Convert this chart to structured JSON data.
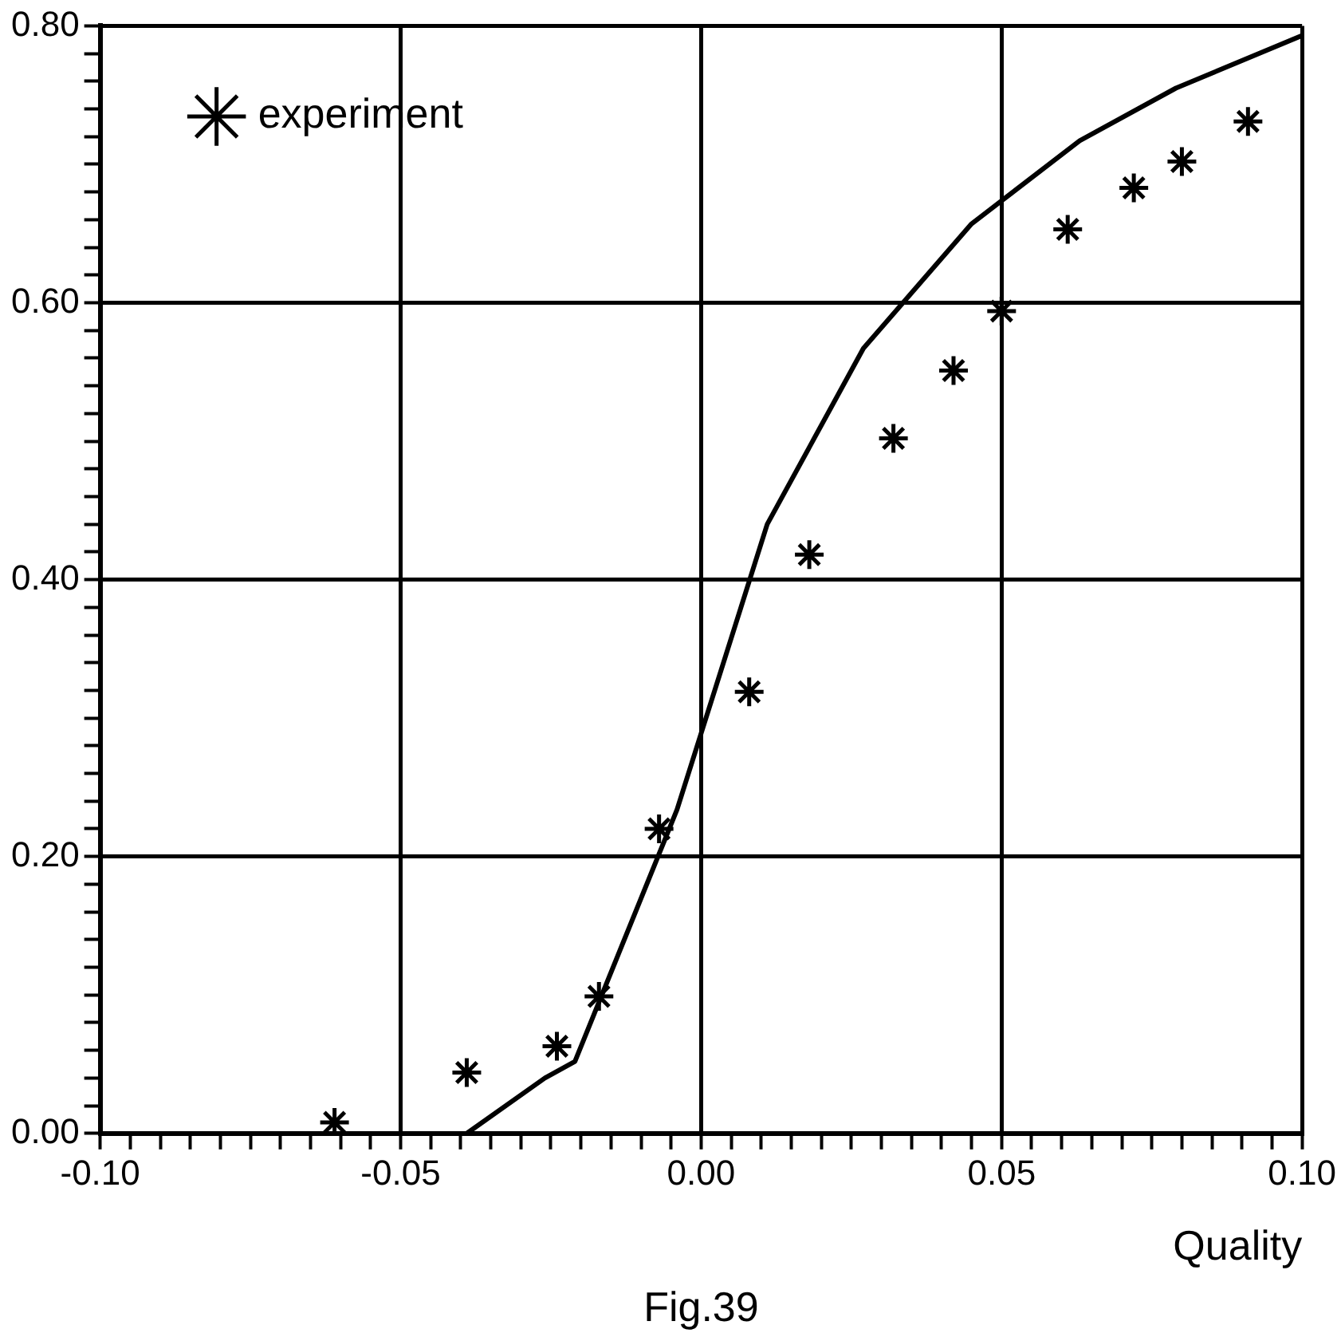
{
  "chart_data": {
    "type": "scatter",
    "xlabel": "Quality",
    "annotations": [
      "Fig.39"
    ],
    "xlim": [
      -0.1,
      0.1
    ],
    "ylim": [
      0,
      0.8
    ],
    "xticks": [
      {
        "value": -0.1,
        "label": "-0.10"
      },
      {
        "value": -0.095,
        "label": null
      },
      {
        "value": -0.09,
        "label": null
      },
      {
        "value": -0.085,
        "label": null
      },
      {
        "value": -0.08,
        "label": null
      },
      {
        "value": -0.075,
        "label": null
      },
      {
        "value": -0.07,
        "label": null
      },
      {
        "value": -0.065,
        "label": null
      },
      {
        "value": -0.06,
        "label": null
      },
      {
        "value": -0.055,
        "label": null
      },
      {
        "value": -0.05,
        "label": "-0.05"
      },
      {
        "value": -0.045,
        "label": null
      },
      {
        "value": -0.04,
        "label": null
      },
      {
        "value": -0.035,
        "label": null
      },
      {
        "value": -0.03,
        "label": null
      },
      {
        "value": -0.025,
        "label": null
      },
      {
        "value": -0.02,
        "label": null
      },
      {
        "value": -0.015,
        "label": null
      },
      {
        "value": -0.01,
        "label": null
      },
      {
        "value": -0.005,
        "label": null
      },
      {
        "value": 0,
        "label": "0.00"
      },
      {
        "value": 0.005,
        "label": null
      },
      {
        "value": 0.01,
        "label": null
      },
      {
        "value": 0.015,
        "label": null
      },
      {
        "value": 0.02,
        "label": null
      },
      {
        "value": 0.025,
        "label": null
      },
      {
        "value": 0.03,
        "label": null
      },
      {
        "value": 0.035,
        "label": null
      },
      {
        "value": 0.04,
        "label": null
      },
      {
        "value": 0.045,
        "label": null
      },
      {
        "value": 0.05,
        "label": "0.05"
      },
      {
        "value": 0.055,
        "label": null
      },
      {
        "value": 0.06,
        "label": null
      },
      {
        "value": 0.065,
        "label": null
      },
      {
        "value": 0.07,
        "label": null
      },
      {
        "value": 0.075,
        "label": null
      },
      {
        "value": 0.08,
        "label": null
      },
      {
        "value": 0.085,
        "label": null
      },
      {
        "value": 0.09,
        "label": null
      },
      {
        "value": 0.095,
        "label": null
      },
      {
        "value": 0.1,
        "label": "0.10"
      }
    ],
    "yticks": [
      {
        "value": 0,
        "label": "0.00"
      },
      {
        "value": 0.02,
        "label": null
      },
      {
        "value": 0.04,
        "label": null
      },
      {
        "value": 0.06,
        "label": null
      },
      {
        "value": 0.08,
        "label": null
      },
      {
        "value": 0.1,
        "label": null
      },
      {
        "value": 0.12,
        "label": null
      },
      {
        "value": 0.14,
        "label": null
      },
      {
        "value": 0.16,
        "label": null
      },
      {
        "value": 0.18,
        "label": null
      },
      {
        "value": 0.2,
        "label": "0.20"
      },
      {
        "value": 0.22,
        "label": null
      },
      {
        "value": 0.24,
        "label": null
      },
      {
        "value": 0.26,
        "label": null
      },
      {
        "value": 0.28,
        "label": null
      },
      {
        "value": 0.3,
        "label": null
      },
      {
        "value": 0.32,
        "label": null
      },
      {
        "value": 0.34,
        "label": null
      },
      {
        "value": 0.36,
        "label": null
      },
      {
        "value": 0.38,
        "label": null
      },
      {
        "value": 0.4,
        "label": "0.40"
      },
      {
        "value": 0.42,
        "label": null
      },
      {
        "value": 0.44,
        "label": null
      },
      {
        "value": 0.46,
        "label": null
      },
      {
        "value": 0.48,
        "label": null
      },
      {
        "value": 0.5,
        "label": null
      },
      {
        "value": 0.52,
        "label": null
      },
      {
        "value": 0.54,
        "label": null
      },
      {
        "value": 0.56,
        "label": null
      },
      {
        "value": 0.58,
        "label": null
      },
      {
        "value": 0.6,
        "label": "0.60"
      },
      {
        "value": 0.62,
        "label": null
      },
      {
        "value": 0.64,
        "label": null
      },
      {
        "value": 0.66,
        "label": null
      },
      {
        "value": 0.68,
        "label": null
      },
      {
        "value": 0.7,
        "label": null
      },
      {
        "value": 0.72,
        "label": null
      },
      {
        "value": 0.74,
        "label": null
      },
      {
        "value": 0.76,
        "label": null
      },
      {
        "value": 0.78,
        "label": null
      },
      {
        "value": 0.8,
        "label": "0.80"
      }
    ],
    "grid": true,
    "legend": "top left",
    "series": [
      {
        "name": "experiment",
        "marker": "cross",
        "color": "#000000",
        "x": [
          -0.061,
          -0.039,
          -0.024,
          -0.017,
          -0.007,
          0.008,
          0.018,
          0.032,
          0.042,
          0.05,
          0.061,
          0.072,
          0.08,
          0.091
        ],
        "values": [
          0.008,
          0.044,
          0.063,
          0.099,
          0.22,
          0.319,
          0.418,
          0.502,
          0.551,
          0.594,
          0.653,
          0.683,
          0.702,
          0.731
        ]
      },
      {
        "type": "line",
        "marker": "none",
        "line_style": "solid",
        "color": "#000000",
        "x": [
          -0.039,
          -0.026,
          -0.021,
          -0.004,
          0.011,
          0.027,
          0.045,
          0.063,
          0.079,
          0.1
        ],
        "values": [
          0,
          0.04,
          0.052,
          0.234,
          0.44,
          0.567,
          0.657,
          0.717,
          0.755,
          0.793
        ]
      }
    ]
  }
}
